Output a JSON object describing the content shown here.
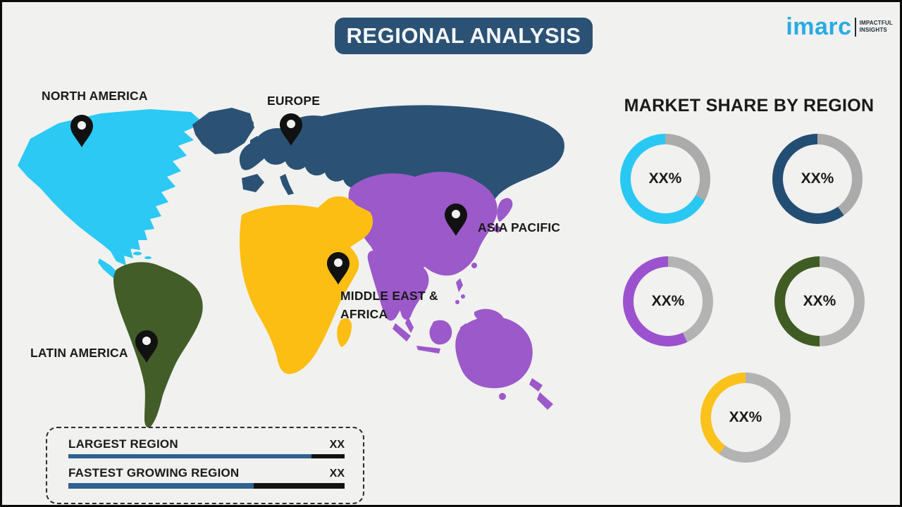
{
  "header": {
    "title": "REGIONAL ANALYSIS",
    "banner_color": "#2B5274"
  },
  "logo": {
    "brand": "imarc",
    "brand_color": "#29ABE2",
    "tagline_line1": "IMPACTFUL",
    "tagline_line2": "INSIGHTS"
  },
  "map": {
    "regions": [
      {
        "name": "North America",
        "label": "NORTH AMERICA",
        "color": "#2BC9F4"
      },
      {
        "name": "Europe",
        "label": "EUROPE",
        "color": "#2B5274"
      },
      {
        "name": "Asia Pacific",
        "label": "ASIA PACIFIC",
        "color": "#9C59C9"
      },
      {
        "name": "Middle East & Africa",
        "label": "MIDDLE EAST & AFRICA",
        "color": "#FDBE14"
      },
      {
        "name": "Latin America",
        "label": "LATIN AMERICA",
        "color": "#425D28"
      }
    ],
    "pin_color": "#111111"
  },
  "market_share": {
    "heading": "MARKET SHARE BY REGION",
    "donuts": [
      {
        "region": "North America",
        "value_label": "XX%",
        "color": "#29C8F3",
        "track_color": "#ABABAB",
        "visual_percent": 67
      },
      {
        "region": "Europe",
        "value_label": "XX%",
        "color": "#234E74",
        "track_color": "#ABABAB",
        "visual_percent": 60
      },
      {
        "region": "Asia Pacific",
        "value_label": "XX%",
        "color": "#9C52CE",
        "track_color": "#B3B3B3",
        "visual_percent": 57
      },
      {
        "region": "Middle East & Africa",
        "value_label": "XX%",
        "color": "#3F5C22",
        "track_color": "#B3B3B3",
        "visual_percent": 50
      },
      {
        "region": "Latin America",
        "value_label": "XX%",
        "color": "#FBC21C",
        "track_color": "#B3B3B3",
        "visual_percent": 40
      }
    ]
  },
  "legend": {
    "bar_fill_color": "#2E6290",
    "bar_base_color": "#121212",
    "rows": [
      {
        "label": "LARGEST REGION",
        "value": "XX",
        "bar_fill_percent": 88
      },
      {
        "label": "FASTEST GROWING REGION",
        "value": "XX",
        "bar_fill_percent": 67
      }
    ]
  },
  "chart_data": [
    {
      "type": "pie",
      "subtype": "donut-set",
      "title": "MARKET SHARE BY REGION",
      "legend_position": "center-of-each-donut",
      "series": [
        {
          "label": "North America",
          "value_label": "XX%",
          "shown_fraction": 0.67
        },
        {
          "label": "Europe",
          "value_label": "XX%",
          "shown_fraction": 0.6
        },
        {
          "label": "Asia Pacific",
          "value_label": "XX%",
          "shown_fraction": 0.57
        },
        {
          "label": "Middle East & Africa",
          "value_label": "XX%",
          "shown_fraction": 0.5
        },
        {
          "label": "Latin America",
          "value_label": "XX%",
          "shown_fraction": 0.4
        }
      ]
    },
    {
      "type": "bar",
      "categories": [
        "LARGEST REGION",
        "FASTEST GROWING REGION"
      ],
      "value_labels": [
        "XX",
        "XX"
      ],
      "visual_fill_fractions": [
        0.88,
        0.67
      ]
    }
  ]
}
